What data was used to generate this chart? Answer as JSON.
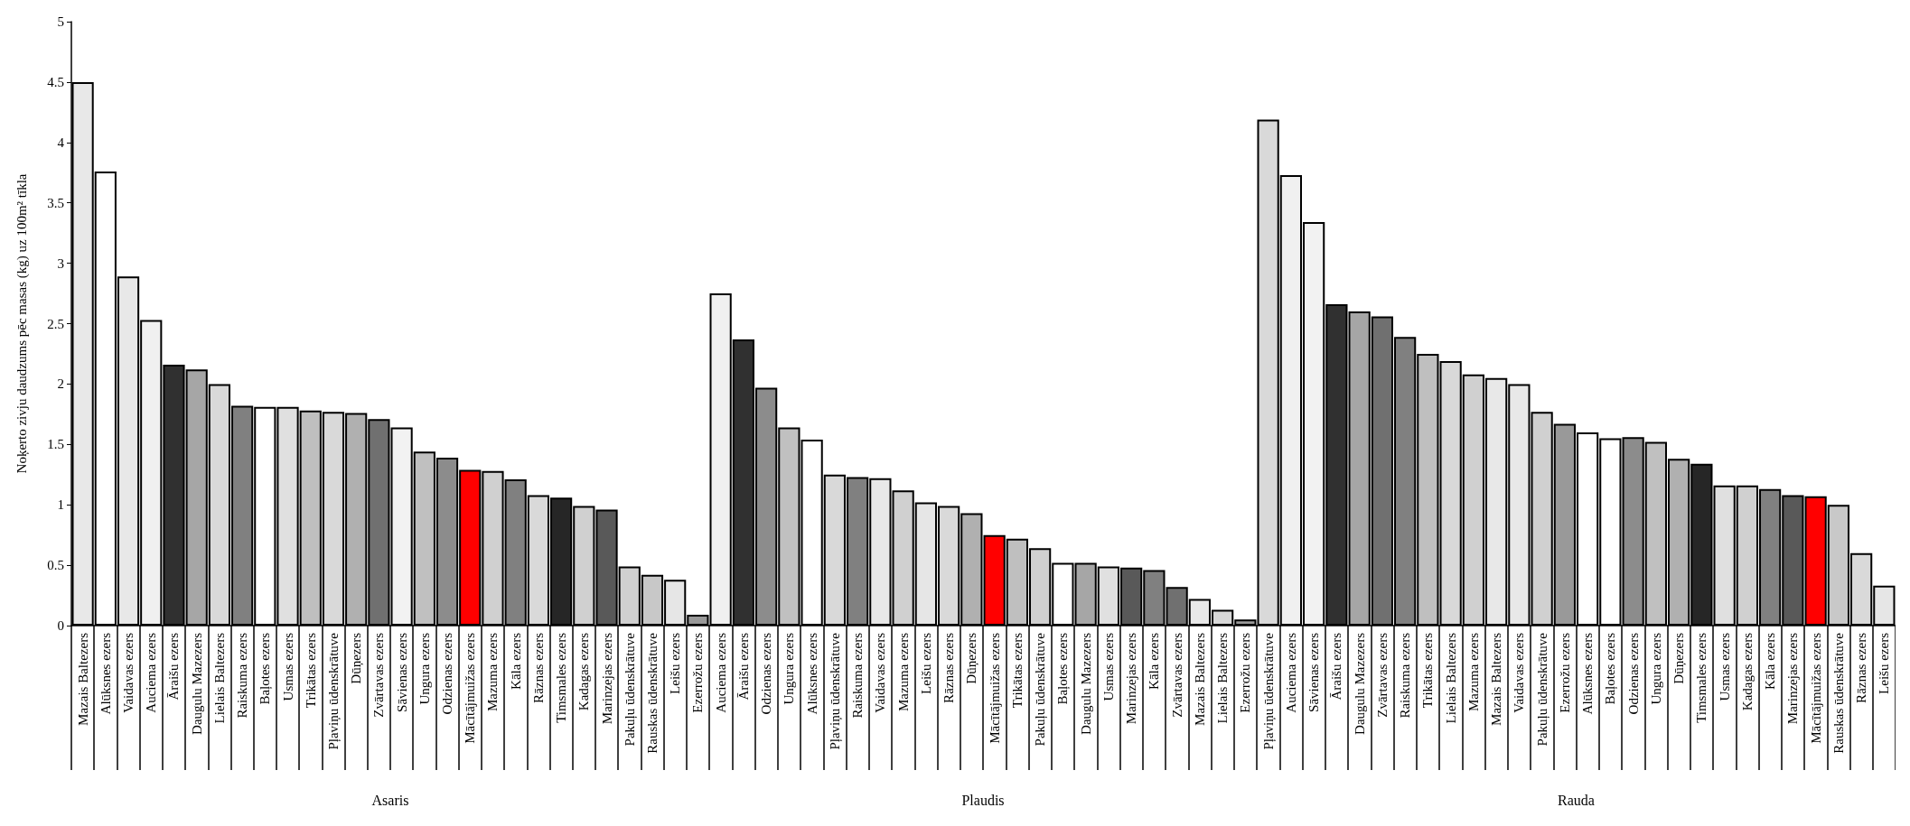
{
  "chart_data": [
    {
      "type": "bar",
      "xlabel": "Asaris",
      "ylabel": "Noķerto zivju daudzums pēc masas (kg) uz 100m² tīkla",
      "ylim": [
        0,
        5
      ],
      "yticks": [
        0,
        0.5,
        1,
        1.5,
        2,
        2.5,
        3,
        3.5,
        4,
        4.5,
        5
      ],
      "categories": [
        "Mazais Baltezers",
        "Alūksnes ezers",
        "Vaidavas ezers",
        "Auciema ezers",
        "Āraišu ezers",
        "Daugulu Mazezers",
        "Lielais Baltezers",
        "Raiskuma ezers",
        "Baļotes ezers",
        "Usmas ezers",
        "Trikātas ezers",
        "Pļaviņu ūdenskrātuve",
        "Dūņezers",
        "Zvārtavas ezers",
        "Sāvienas ezers",
        "Ungura ezers",
        "Odzienas ezers",
        "Mācītājmuižas ezers",
        "Mazuma ezers",
        "Kāla ezers",
        "Rāznas ezers",
        "Timsmales ezers",
        "Kadagas ezers",
        "Marinzejas ezers",
        "Pakuļu ūdenskrātuve",
        "Rauskas ūdenskrātuve",
        "Leišu ezers",
        "Ezerrožu ezers"
      ],
      "values": [
        4.5,
        3.76,
        2.89,
        2.53,
        2.16,
        2.12,
        2.0,
        1.82,
        1.81,
        1.81,
        1.78,
        1.77,
        1.76,
        1.71,
        1.64,
        1.44,
        1.39,
        1.29,
        1.28,
        1.21,
        1.08,
        1.06,
        0.99,
        0.96,
        0.49,
        0.42,
        0.38,
        0.09
      ],
      "colors": [
        "#e8e8e8",
        "#ffffff",
        "#e8e8e8",
        "#f0f0f0",
        "#303030",
        "#a6a6a6",
        "#d9d9d9",
        "#808080",
        "#ffffff",
        "#e0e0e0",
        "#bfbfbf",
        "#d9d9d9",
        "#b0b0b0",
        "#707070",
        "#f2f2f2",
        "#c0c0c0",
        "#8c8c8c",
        "#ff0000",
        "#d0d0d0",
        "#808080",
        "#d9d9d9",
        "#262626",
        "#d0d0d0",
        "#595959",
        "#d0d0d0",
        "#c8c8c8",
        "#e6e6e6",
        "#999999"
      ]
    },
    {
      "type": "bar",
      "xlabel": "Plaudis",
      "ylim": [
        0,
        5
      ],
      "yticks": [
        0,
        0.5,
        1,
        1.5,
        2,
        2.5,
        3,
        3.5,
        4,
        4.5,
        5
      ],
      "tick_labels": "x",
      "categories": [
        "Auciema ezers",
        "Āraišu ezers",
        "Odzienas ezers",
        "Ungura ezers",
        "Alūksnes ezers",
        "Pļaviņu ūdenskrātuve",
        "Raiskuma ezers",
        "Vaidavas ezers",
        "Mazuma ezers",
        "Leišu ezers",
        "Rāznas ezers",
        "Dūņezers",
        "Mācītājmuižas ezers",
        "Trikātas ezers",
        "Pakuļu ūdenskrātuve",
        "Baļotes ezers",
        "Daugulu Mazezers",
        "Usmas ezers",
        "Marinzejas ezers",
        "Kāla ezers",
        "Zvārtavas ezers",
        "Mazais Baltezers",
        "Lielais Baltezers",
        "Ezerrožu ezers"
      ],
      "values": [
        2.75,
        2.37,
        1.97,
        1.64,
        1.54,
        1.25,
        1.23,
        1.22,
        1.12,
        1.02,
        0.99,
        0.93,
        0.75,
        0.72,
        0.64,
        0.52,
        0.52,
        0.49,
        0.48,
        0.46,
        0.32,
        0.22,
        0.13,
        0.05
      ],
      "colors": [
        "#f0f0f0",
        "#303030",
        "#8c8c8c",
        "#c0c0c0",
        "#ffffff",
        "#d9d9d9",
        "#808080",
        "#e8e8e8",
        "#d0d0d0",
        "#e6e6e6",
        "#d9d9d9",
        "#b0b0b0",
        "#ff0000",
        "#bfbfbf",
        "#d0d0d0",
        "#ffffff",
        "#a6a6a6",
        "#e0e0e0",
        "#595959",
        "#808080",
        "#707070",
        "#e8e8e8",
        "#d9d9d9",
        "#999999"
      ]
    },
    {
      "type": "bar",
      "xlabel": "Rauda",
      "ylim": [
        0,
        5
      ],
      "yticks": [
        0,
        0.5,
        1,
        1.5,
        2,
        2.5,
        3,
        3.5,
        4,
        4.5,
        5
      ],
      "tick_labels": "x",
      "categories": [
        "Pļaviņu ūdenskrātuve",
        "Auciema ezers",
        "Sāvienas ezers",
        "Āraišu ezers",
        "Daugulu Mazezers",
        "Zvārtavas ezers",
        "Raiskuma ezers",
        "Trikātas ezers",
        "Lielais Baltezers",
        "Mazuma ezers",
        "Mazais Baltezers",
        "Vaidavas ezers",
        "Pakuļu ūdenskrātuve",
        "Ezerrožu ezers",
        "Alūksnes ezers",
        "Baļotes ezers",
        "Odzienas ezers",
        "Ungura ezers",
        "Dūņezers",
        "Timsmales ezers",
        "Usmas ezers",
        "Kadagas ezers",
        "Kāla ezers",
        "Marinzejas ezers",
        "Mācītājmuižas ezers",
        "Rauskas ūdenskrātuve",
        "Rāznas ezers",
        "Leišu ezers"
      ],
      "values": [
        4.19,
        3.73,
        3.34,
        2.66,
        2.6,
        2.56,
        2.39,
        2.25,
        2.19,
        2.08,
        2.05,
        2.0,
        1.77,
        1.67,
        1.6,
        1.55,
        1.56,
        1.52,
        1.38,
        1.34,
        1.16,
        1.16,
        1.13,
        1.08,
        1.07,
        1.0,
        0.6,
        0.33
      ],
      "colors": [
        "#d9d9d9",
        "#f0f0f0",
        "#f2f2f2",
        "#303030",
        "#a6a6a6",
        "#707070",
        "#808080",
        "#bfbfbf",
        "#d9d9d9",
        "#d0d0d0",
        "#e8e8e8",
        "#e8e8e8",
        "#d0d0d0",
        "#999999",
        "#ffffff",
        "#ffffff",
        "#8c8c8c",
        "#c0c0c0",
        "#b0b0b0",
        "#262626",
        "#e0e0e0",
        "#d0d0d0",
        "#808080",
        "#595959",
        "#ff0000",
        "#c8c8c8",
        "#d9d9d9",
        "#e6e6e6"
      ]
    }
  ]
}
